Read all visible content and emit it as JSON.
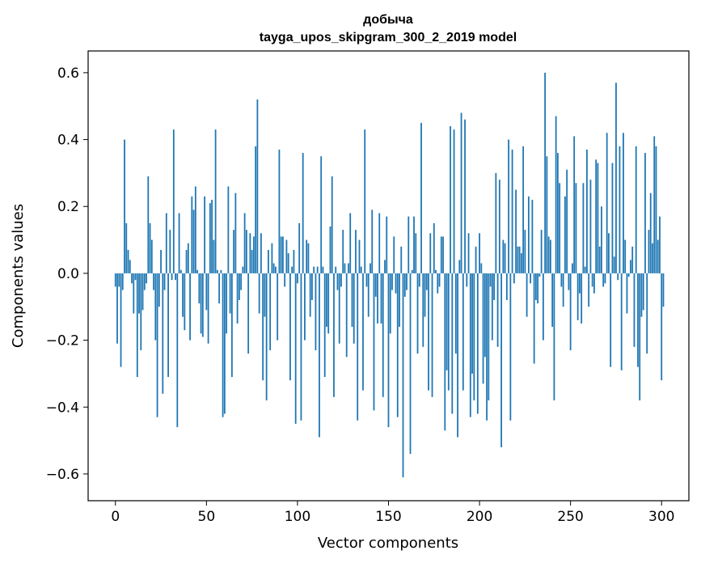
{
  "chart_data": {
    "type": "bar",
    "title": "добыча",
    "subtitle": "tayga_upos_skipgram_300_2_2019 model",
    "xlabel": "Vector components",
    "ylabel": "Components values",
    "xlim": [
      -15,
      315
    ],
    "ylim": [
      -0.68,
      0.665
    ],
    "x_ticks": [
      0,
      50,
      100,
      150,
      200,
      250,
      300
    ],
    "x_tick_labels": [
      "0",
      "50",
      "100",
      "150",
      "200",
      "250",
      "300"
    ],
    "y_ticks": [
      -0.6,
      -0.4,
      -0.2,
      0.0,
      0.2,
      0.4,
      0.6
    ],
    "y_tick_labels": [
      "−0.6",
      "−0.4",
      "−0.2",
      "0.0",
      "0.2",
      "0.4",
      "0.6"
    ],
    "grid": false,
    "bar_color": "#1f77b4",
    "values": [
      -0.04,
      -0.21,
      -0.04,
      -0.28,
      -0.05,
      0.4,
      0.15,
      0.07,
      0.04,
      -0.03,
      -0.12,
      -0.02,
      -0.31,
      -0.12,
      -0.23,
      -0.11,
      -0.05,
      -0.03,
      0.29,
      0.15,
      0.1,
      -0.05,
      -0.2,
      -0.43,
      -0.1,
      0.07,
      -0.36,
      -0.05,
      0.18,
      -0.31,
      0.13,
      -0.02,
      0.43,
      -0.02,
      -0.46,
      0.18,
      0.01,
      -0.13,
      -0.17,
      0.07,
      0.09,
      -0.2,
      0.23,
      0.19,
      0.26,
      0.01,
      -0.09,
      -0.18,
      -0.19,
      0.23,
      -0.11,
      -0.21,
      0.21,
      0.22,
      0.1,
      0.43,
      0.01,
      -0.09,
      0.01,
      -0.43,
      -0.42,
      -0.18,
      0.26,
      -0.12,
      -0.31,
      0.13,
      0.24,
      -0.15,
      -0.08,
      -0.05,
      0.02,
      0.18,
      0.13,
      -0.24,
      0.12,
      0.07,
      0.11,
      0.38,
      0.52,
      -0.12,
      0.12,
      -0.32,
      -0.13,
      -0.38,
      0.07,
      -0.23,
      0.09,
      0.03,
      0.02,
      -0.2,
      0.37,
      0.11,
      0.11,
      -0.04,
      0.1,
      0.06,
      -0.32,
      0.02,
      0.07,
      -0.45,
      -0.03,
      0.15,
      -0.44,
      0.36,
      -0.2,
      0.1,
      0.09,
      -0.13,
      -0.08,
      0.02,
      -0.23,
      0.02,
      -0.49,
      0.35,
      0.02,
      -0.31,
      -0.16,
      -0.18,
      0.14,
      0.29,
      -0.37,
      0.02,
      -0.05,
      -0.21,
      -0.04,
      0.13,
      0.03,
      -0.25,
      0.03,
      0.18,
      -0.16,
      -0.21,
      0.13,
      -0.44,
      0.1,
      0.02,
      -0.35,
      0.43,
      -0.04,
      -0.13,
      0.03,
      0.19,
      -0.41,
      -0.07,
      -0.15,
      0.18,
      -0.15,
      -0.37,
      0.04,
      0.17,
      -0.46,
      -0.18,
      -0.05,
      0.11,
      -0.06,
      -0.43,
      -0.16,
      0.08,
      -0.61,
      -0.07,
      -0.05,
      0.17,
      -0.54,
      0.01,
      0.17,
      0.12,
      -0.24,
      -0.04,
      0.45,
      -0.22,
      -0.13,
      -0.05,
      -0.35,
      0.12,
      -0.37,
      0.15,
      0.01,
      -0.06,
      -0.04,
      0.11,
      0.11,
      -0.47,
      -0.29,
      -0.35,
      0.44,
      -0.42,
      0.43,
      -0.24,
      -0.49,
      0.04,
      0.48,
      -0.35,
      0.46,
      -0.04,
      0.12,
      -0.43,
      -0.3,
      -0.38,
      0.08,
      -0.42,
      0.12,
      0.03,
      -0.33,
      -0.25,
      -0.44,
      -0.38,
      -0.04,
      -0.2,
      -0.08,
      0.3,
      -0.22,
      0.28,
      -0.52,
      0.1,
      0.09,
      -0.08,
      0.4,
      -0.44,
      0.37,
      -0.03,
      0.25,
      0.08,
      0.08,
      0.06,
      0.38,
      0.13,
      -0.13,
      0.23,
      -0.03,
      0.22,
      -0.27,
      -0.08,
      -0.09,
      -0.01,
      0.13,
      -0.2,
      0.6,
      0.35,
      0.11,
      0.1,
      -0.16,
      -0.38,
      0.47,
      0.36,
      0.27,
      -0.04,
      -0.1,
      0.23,
      0.31,
      -0.05,
      -0.23,
      0.03,
      0.41,
      0.27,
      -0.14,
      -0.06,
      -0.15,
      0.27,
      0.02,
      0.37,
      -0.1,
      0.28,
      -0.04,
      -0.06,
      0.34,
      0.33,
      0.08,
      0.2,
      -0.04,
      -0.03,
      0.42,
      0.12,
      -0.28,
      0.33,
      0.05,
      0.57,
      -0.02,
      0.38,
      -0.29,
      0.42,
      0.1,
      -0.12,
      -0.01,
      0.04,
      0.08,
      -0.22,
      0.38,
      -0.28,
      -0.38,
      -0.13,
      -0.11,
      0.36,
      -0.24,
      0.13,
      0.24,
      0.09,
      0.41,
      0.38,
      0.1,
      0.17,
      -0.32,
      -0.1
    ]
  }
}
